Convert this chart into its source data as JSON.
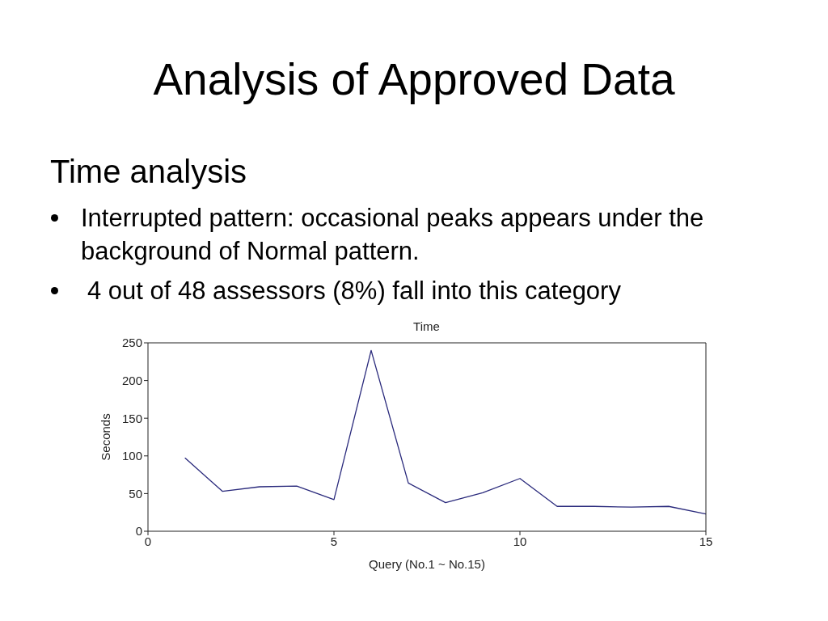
{
  "chart_data": {
    "type": "line",
    "title": "Analysis of Approved Data",
    "subtitle": "Time analysis",
    "xlabel": "Query (No.1 ~ No.15)",
    "ylabel": "Seconds",
    "annotations": [
      "Interrupted pattern: occasional peaks appears under the background of Normal pattern.",
      "4 out of 48 assessors (8%) fall into this category",
      "Time"
    ],
    "x": [
      1,
      2,
      3,
      4,
      5,
      6,
      7,
      8,
      9,
      10,
      11,
      12,
      13,
      14,
      15
    ],
    "values": [
      97,
      53,
      59,
      60,
      42,
      240,
      64,
      38,
      51,
      70,
      33,
      33,
      32,
      33,
      23
    ],
    "color": "#2a2a7c",
    "xlim": [
      0,
      15
    ],
    "xticks": [
      0,
      5,
      10,
      15
    ],
    "ylim": [
      0,
      250
    ],
    "yticks": [
      0,
      50,
      100,
      150,
      200,
      250
    ],
    "marker": "none"
  }
}
